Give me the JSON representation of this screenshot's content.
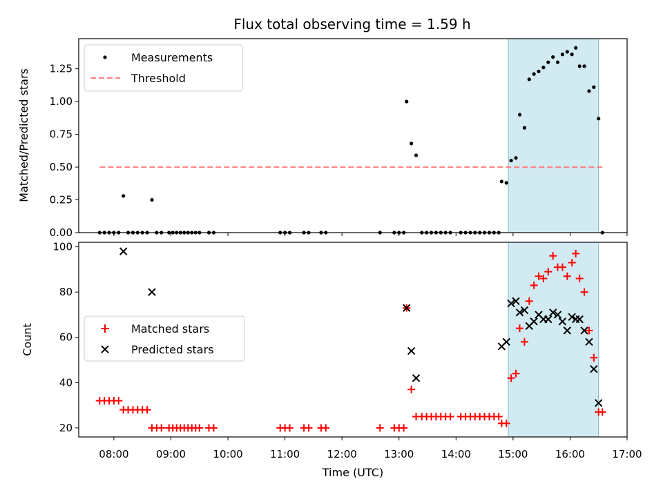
{
  "chart_data": [
    {
      "type": "scatter",
      "title": "Flux total observing time = 1.59 h",
      "xlabel": "",
      "ylabel": "Matched/Predicted stars",
      "xlim": [
        "07:23",
        "17:00"
      ],
      "ylim": [
        0,
        1.48
      ],
      "yticks": [
        "0.00",
        "0.25",
        "0.50",
        "0.75",
        "1.00",
        "1.25"
      ],
      "grid": false,
      "legend_position": "upper-left",
      "highlight_span": {
        "start": "14:55",
        "end": "16:30",
        "color": "#add8e6"
      },
      "series": [
        {
          "name": "Measurements",
          "marker": "dot",
          "color": "#000000",
          "points": [
            [
              "07:45",
              0
            ],
            [
              "07:50",
              0
            ],
            [
              "07:55",
              0
            ],
            [
              "08:00",
              0
            ],
            [
              "08:05",
              0
            ],
            [
              "08:10",
              0.28
            ],
            [
              "08:15",
              0
            ],
            [
              "08:20",
              0
            ],
            [
              "08:25",
              0
            ],
            [
              "08:30",
              0
            ],
            [
              "08:35",
              0
            ],
            [
              "08:40",
              0.25
            ],
            [
              "08:45",
              0
            ],
            [
              "08:50",
              0
            ],
            [
              "08:58",
              0
            ],
            [
              "09:02",
              0
            ],
            [
              "09:06",
              0
            ],
            [
              "09:10",
              0
            ],
            [
              "09:14",
              0
            ],
            [
              "09:18",
              0
            ],
            [
              "09:22",
              0
            ],
            [
              "09:26",
              0
            ],
            [
              "09:30",
              0
            ],
            [
              "09:40",
              0
            ],
            [
              "09:45",
              0
            ],
            [
              "10:55",
              0
            ],
            [
              "11:00",
              0
            ],
            [
              "11:05",
              0
            ],
            [
              "11:20",
              0
            ],
            [
              "11:25",
              0
            ],
            [
              "11:38",
              0
            ],
            [
              "11:43",
              0
            ],
            [
              "12:40",
              0
            ],
            [
              "12:55",
              0
            ],
            [
              "13:00",
              0
            ],
            [
              "13:05",
              0
            ],
            [
              "13:08",
              1.0
            ],
            [
              "13:13",
              0.68
            ],
            [
              "13:18",
              0.59
            ],
            [
              "13:24",
              0
            ],
            [
              "13:29",
              0
            ],
            [
              "13:34",
              0
            ],
            [
              "13:39",
              0
            ],
            [
              "13:44",
              0
            ],
            [
              "13:49",
              0
            ],
            [
              "13:54",
              0
            ],
            [
              "14:05",
              0
            ],
            [
              "14:10",
              0
            ],
            [
              "14:15",
              0
            ],
            [
              "14:20",
              0
            ],
            [
              "14:25",
              0
            ],
            [
              "14:30",
              0
            ],
            [
              "14:35",
              0
            ],
            [
              "14:40",
              0
            ],
            [
              "14:45",
              0
            ],
            [
              "14:48",
              0.39
            ],
            [
              "14:53",
              0.38
            ],
            [
              "14:58",
              0.55
            ],
            [
              "15:03",
              0.57
            ],
            [
              "15:07",
              0.9
            ],
            [
              "15:12",
              0.8
            ],
            [
              "15:17",
              1.17
            ],
            [
              "15:22",
              1.21
            ],
            [
              "15:27",
              1.23
            ],
            [
              "15:32",
              1.26
            ],
            [
              "15:37",
              1.3
            ],
            [
              "15:42",
              1.34
            ],
            [
              "15:47",
              1.3
            ],
            [
              "15:52",
              1.36
            ],
            [
              "15:57",
              1.38
            ],
            [
              "16:02",
              1.36
            ],
            [
              "16:06",
              1.41
            ],
            [
              "16:10",
              1.27
            ],
            [
              "16:15",
              1.27
            ],
            [
              "16:20",
              1.08
            ],
            [
              "16:25",
              1.11
            ],
            [
              "16:30",
              0.87
            ],
            [
              "16:34",
              0
            ]
          ]
        },
        {
          "name": "Threshold",
          "marker": "dashed-line",
          "color": "#ff7f7f",
          "points": [
            [
              "07:45",
              0.5
            ],
            [
              "16:35",
              0.5
            ]
          ]
        }
      ]
    },
    {
      "type": "scatter",
      "title": "",
      "xlabel": "Time (UTC)",
      "ylabel": "Count",
      "xlim": [
        "07:23",
        "17:00"
      ],
      "ylim": [
        16,
        102
      ],
      "xticks": [
        "08:00",
        "09:00",
        "10:00",
        "11:00",
        "12:00",
        "13:00",
        "14:00",
        "15:00",
        "16:00",
        "17:00"
      ],
      "yticks": [
        "20",
        "40",
        "60",
        "80",
        "100"
      ],
      "grid": false,
      "legend_position": "center-left",
      "highlight_span": {
        "start": "14:55",
        "end": "16:30",
        "color": "#add8e6"
      },
      "series": [
        {
          "name": "Matched stars",
          "marker": "plus",
          "color": "#ff0000",
          "points": [
            [
              "07:45",
              32
            ],
            [
              "07:50",
              32
            ],
            [
              "07:55",
              32
            ],
            [
              "08:00",
              32
            ],
            [
              "08:05",
              32
            ],
            [
              "08:10",
              28
            ],
            [
              "08:15",
              28
            ],
            [
              "08:20",
              28
            ],
            [
              "08:25",
              28
            ],
            [
              "08:30",
              28
            ],
            [
              "08:35",
              28
            ],
            [
              "08:40",
              20
            ],
            [
              "08:45",
              20
            ],
            [
              "08:50",
              20
            ],
            [
              "08:58",
              20
            ],
            [
              "09:02",
              20
            ],
            [
              "09:06",
              20
            ],
            [
              "09:10",
              20
            ],
            [
              "09:14",
              20
            ],
            [
              "09:18",
              20
            ],
            [
              "09:22",
              20
            ],
            [
              "09:26",
              20
            ],
            [
              "09:30",
              20
            ],
            [
              "09:40",
              20
            ],
            [
              "09:45",
              20
            ],
            [
              "10:55",
              20
            ],
            [
              "11:00",
              20
            ],
            [
              "11:05",
              20
            ],
            [
              "11:20",
              20
            ],
            [
              "11:25",
              20
            ],
            [
              "11:38",
              20
            ],
            [
              "11:43",
              20
            ],
            [
              "12:40",
              20
            ],
            [
              "12:55",
              20
            ],
            [
              "13:00",
              20
            ],
            [
              "13:05",
              20
            ],
            [
              "13:08",
              73
            ],
            [
              "13:13",
              37
            ],
            [
              "13:18",
              25
            ],
            [
              "13:24",
              25
            ],
            [
              "13:29",
              25
            ],
            [
              "13:34",
              25
            ],
            [
              "13:39",
              25
            ],
            [
              "13:44",
              25
            ],
            [
              "13:49",
              25
            ],
            [
              "13:54",
              25
            ],
            [
              "14:05",
              25
            ],
            [
              "14:10",
              25
            ],
            [
              "14:15",
              25
            ],
            [
              "14:20",
              25
            ],
            [
              "14:25",
              25
            ],
            [
              "14:30",
              25
            ],
            [
              "14:35",
              25
            ],
            [
              "14:40",
              25
            ],
            [
              "14:45",
              25
            ],
            [
              "14:48",
              22
            ],
            [
              "14:53",
              22
            ],
            [
              "14:58",
              42
            ],
            [
              "15:03",
              44
            ],
            [
              "15:07",
              64
            ],
            [
              "15:12",
              58
            ],
            [
              "15:17",
              76
            ],
            [
              "15:22",
              83
            ],
            [
              "15:27",
              87
            ],
            [
              "15:32",
              86
            ],
            [
              "15:37",
              89
            ],
            [
              "15:42",
              96
            ],
            [
              "15:47",
              91
            ],
            [
              "15:52",
              91
            ],
            [
              "15:57",
              87
            ],
            [
              "16:02",
              93
            ],
            [
              "16:06",
              97
            ],
            [
              "16:10",
              86
            ],
            [
              "16:15",
              80
            ],
            [
              "16:20",
              63
            ],
            [
              "16:25",
              51
            ],
            [
              "16:30",
              27
            ],
            [
              "16:34",
              27
            ]
          ]
        },
        {
          "name": "Predicted stars",
          "marker": "x",
          "color": "#000000",
          "points": [
            [
              "08:10",
              98
            ],
            [
              "08:40",
              80
            ],
            [
              "13:08",
              73
            ],
            [
              "13:13",
              54
            ],
            [
              "13:18",
              42
            ],
            [
              "14:48",
              56
            ],
            [
              "14:53",
              58
            ],
            [
              "14:58",
              75
            ],
            [
              "15:03",
              76
            ],
            [
              "15:07",
              71
            ],
            [
              "15:12",
              72
            ],
            [
              "15:17",
              65
            ],
            [
              "15:22",
              67
            ],
            [
              "15:27",
              70
            ],
            [
              "15:32",
              68
            ],
            [
              "15:37",
              68
            ],
            [
              "15:42",
              71
            ],
            [
              "15:47",
              70
            ],
            [
              "15:52",
              67
            ],
            [
              "15:57",
              63
            ],
            [
              "16:02",
              69
            ],
            [
              "16:06",
              68
            ],
            [
              "16:10",
              68
            ],
            [
              "16:15",
              63
            ],
            [
              "16:20",
              58
            ],
            [
              "16:25",
              46
            ],
            [
              "16:30",
              31
            ]
          ]
        }
      ]
    }
  ]
}
